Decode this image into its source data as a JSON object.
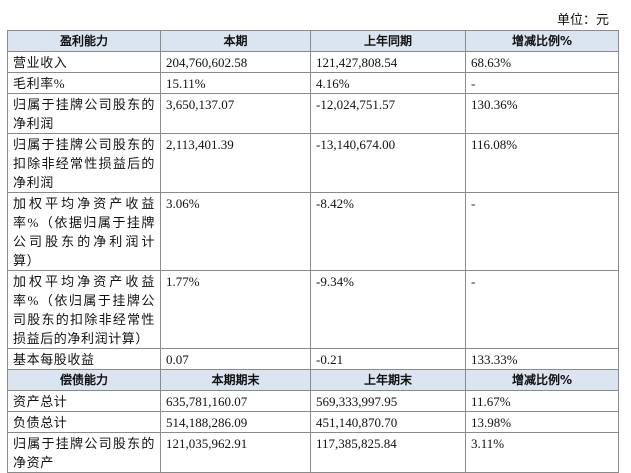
{
  "unit": "单位：元",
  "sections": [
    {
      "header": [
        "盈利能力",
        "本期",
        "上年同期",
        "增减比例%"
      ],
      "rows": [
        [
          "营业收入",
          "204,760,602.58",
          "121,427,808.54",
          "68.63%"
        ],
        [
          "毛利率%",
          "15.11%",
          "4.16%",
          "-"
        ],
        [
          "归属于挂牌公司股东的净利润",
          "3,650,137.07",
          "-12,024,751.57",
          "130.36%"
        ],
        [
          "归属于挂牌公司股东的扣除非经常性损益后的净利润",
          "2,113,401.39",
          "-13,140,674.00",
          "116.08%"
        ],
        [
          "加权平均净资产收益率%（依据归属于挂牌公司股东的净利润计算）",
          "3.06%",
          "-8.42%",
          "-"
        ],
        [
          "加权平均净资产收益率%（依归属于挂牌公司股东的扣除非经常性损益后的净利润计算）",
          "1.77%",
          "-9.34%",
          "-"
        ],
        [
          "基本每股收益",
          "0.07",
          "-0.21",
          "133.33%"
        ]
      ]
    },
    {
      "header": [
        "偿债能力",
        "本期期末",
        "上年期末",
        "增减比例%"
      ],
      "rows": [
        [
          "资产总计",
          "635,781,160.07",
          "569,333,997.95",
          "11.67%"
        ],
        [
          "负债总计",
          "514,188,286.09",
          "451,140,870.70",
          "13.98%"
        ],
        [
          "归属于挂牌公司股东的净资产",
          "121,035,962.91",
          "117,385,825.84",
          "3.11%"
        ]
      ]
    }
  ]
}
